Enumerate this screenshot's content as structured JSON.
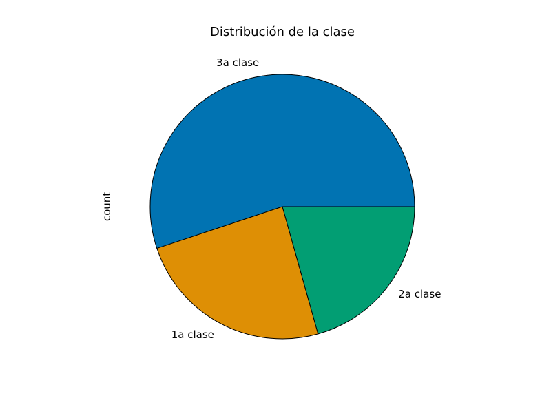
{
  "chart_data": {
    "type": "pie",
    "title": "Distribución de la clase",
    "ylabel": "count",
    "start_angle_deg": 0,
    "direction": "counterclockwise",
    "edge_color": "#000000",
    "slices": [
      {
        "label": "3a clase",
        "value": 491,
        "color": "#0173b2"
      },
      {
        "label": "1a clase",
        "value": 216,
        "color": "#de8f05"
      },
      {
        "label": "2a clase",
        "value": 184,
        "color": "#029e73"
      }
    ]
  }
}
